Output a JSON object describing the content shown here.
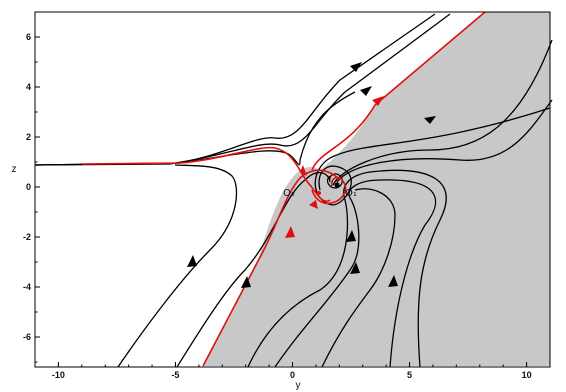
{
  "chart_data": {
    "type": "phase-portrait",
    "xlabel": "y",
    "ylabel": "z",
    "xlim": [
      -11,
      11
    ],
    "ylim": [
      -7.2,
      7
    ],
    "xticks": [
      {
        "v": -10,
        "t": "-10"
      },
      {
        "v": -5,
        "t": "-5"
      },
      {
        "v": 0,
        "t": "0"
      },
      {
        "v": 5,
        "t": "5"
      },
      {
        "v": 10,
        "t": "10"
      }
    ],
    "yticks": [
      {
        "v": 6,
        "t": "6"
      },
      {
        "v": 4,
        "t": "4"
      },
      {
        "v": 2,
        "t": "2"
      },
      {
        "v": 0,
        "t": "0"
      },
      {
        "v": -2,
        "t": "-2"
      },
      {
        "v": -4,
        "t": "-4"
      },
      {
        "v": -6,
        "t": "-6"
      }
    ],
    "equilibria": [
      {
        "label": "O₁",
        "y": 1.3,
        "z": 0.1
      },
      {
        "label": "O₂",
        "y": 0.5,
        "z": 0.2
      }
    ],
    "colors": {
      "shaded_region": "#c8c8c8",
      "separatrix": "#e01010",
      "trajectories": "#000000"
    }
  }
}
